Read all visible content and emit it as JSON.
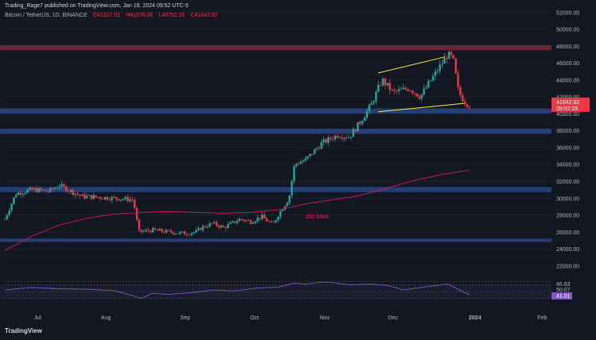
{
  "header": {
    "publisher_line": "Trading_Rage7 published on TradingView.com, Jan 19, 2024 09:52 UTC-5",
    "symbol": "Bitcoin / TetherUS, 1D, BINANCE",
    "ohlc": {
      "o": "O41327.51",
      "h": "H41576.00",
      "l": "L40752.26",
      "c": "C41042.92"
    }
  },
  "logo": "TradingView",
  "colors": {
    "bg": "#131722",
    "up": "#26a69a",
    "down": "#f23645",
    "zone_blue": "#2a4a8a",
    "zone_red": "#7a2a3a",
    "channel": "#ffeb3b",
    "dma": "#c2185b",
    "rsi": "#7e57c2",
    "price_badge": "#f23645"
  },
  "chart_data": {
    "type": "candlestick",
    "price_axis": {
      "ticks": [
        22000,
        24000,
        26000,
        28000,
        30000,
        32000,
        34000,
        36000,
        38000,
        40000,
        42000,
        44000,
        46000,
        48000,
        50000,
        52000
      ],
      "range": [
        21000,
        52500
      ]
    },
    "time_axis": {
      "ticks": [
        "Jul",
        "Aug",
        "Sep",
        "Oct",
        "Nov",
        "Dec",
        "2024",
        "Feb"
      ]
    },
    "last_price": "41042.92",
    "countdown": "09:07:28",
    "zones": [
      {
        "color": "red",
        "low": 47500,
        "high": 48100
      },
      {
        "color": "blue",
        "low": 40000,
        "high": 40600
      },
      {
        "color": "blue",
        "low": 37600,
        "high": 38200
      },
      {
        "color": "blue",
        "low": 30700,
        "high": 31300
      },
      {
        "color": "blue",
        "low": 24800,
        "high": 25200
      }
    ],
    "channel": {
      "upper": [
        [
          0.683,
          44800
        ],
        [
          0.805,
          46700
        ]
      ],
      "lower": [
        [
          0.683,
          40200
        ],
        [
          0.84,
          41200
        ]
      ]
    },
    "dma_label": "200 DMA",
    "anchors": [
      [
        0.0,
        27500
      ],
      [
        0.02,
        30500
      ],
      [
        0.05,
        31000
      ],
      [
        0.08,
        30800
      ],
      [
        0.1,
        31500
      ],
      [
        0.14,
        30200
      ],
      [
        0.2,
        30000
      ],
      [
        0.235,
        29800
      ],
      [
        0.245,
        26000
      ],
      [
        0.27,
        26200
      ],
      [
        0.3,
        26000
      ],
      [
        0.33,
        25800
      ],
      [
        0.35,
        26000
      ],
      [
        0.36,
        26500
      ],
      [
        0.38,
        27000
      ],
      [
        0.4,
        26500
      ],
      [
        0.43,
        27500
      ],
      [
        0.45,
        27200
      ],
      [
        0.47,
        27800
      ],
      [
        0.49,
        26800
      ],
      [
        0.5,
        28000
      ],
      [
        0.52,
        30000
      ],
      [
        0.53,
        34000
      ],
      [
        0.55,
        34500
      ],
      [
        0.58,
        36500
      ],
      [
        0.61,
        37500
      ],
      [
        0.63,
        37200
      ],
      [
        0.65,
        39000
      ],
      [
        0.67,
        41000
      ],
      [
        0.69,
        44000
      ],
      [
        0.71,
        42500
      ],
      [
        0.74,
        43000
      ],
      [
        0.76,
        42000
      ],
      [
        0.79,
        45000
      ],
      [
        0.81,
        47000
      ],
      [
        0.82,
        46500
      ],
      [
        0.83,
        42500
      ],
      [
        0.84,
        41500
      ],
      [
        0.85,
        41000
      ]
    ],
    "dma": [
      [
        0.0,
        23800
      ],
      [
        0.05,
        25500
      ],
      [
        0.1,
        26800
      ],
      [
        0.15,
        27600
      ],
      [
        0.2,
        28100
      ],
      [
        0.25,
        28300
      ],
      [
        0.3,
        28400
      ],
      [
        0.35,
        28300
      ],
      [
        0.4,
        28200
      ],
      [
        0.45,
        28300
      ],
      [
        0.5,
        28600
      ],
      [
        0.55,
        29300
      ],
      [
        0.6,
        29800
      ],
      [
        0.65,
        30300
      ],
      [
        0.7,
        31200
      ],
      [
        0.75,
        32100
      ],
      [
        0.8,
        32800
      ],
      [
        0.85,
        33300
      ]
    ],
    "rsi": {
      "values_labels": [
        "66.83",
        "50.07",
        "41.01"
      ],
      "levels": [
        80,
        70,
        50,
        30
      ],
      "anchors": [
        [
          0.0,
          55
        ],
        [
          0.05,
          62
        ],
        [
          0.1,
          58
        ],
        [
          0.15,
          57
        ],
        [
          0.2,
          53
        ],
        [
          0.23,
          40
        ],
        [
          0.25,
          30
        ],
        [
          0.27,
          45
        ],
        [
          0.3,
          42
        ],
        [
          0.35,
          48
        ],
        [
          0.38,
          55
        ],
        [
          0.42,
          52
        ],
        [
          0.46,
          60
        ],
        [
          0.5,
          63
        ],
        [
          0.53,
          75
        ],
        [
          0.55,
          72
        ],
        [
          0.58,
          78
        ],
        [
          0.6,
          76
        ],
        [
          0.63,
          70
        ],
        [
          0.67,
          72
        ],
        [
          0.7,
          68
        ],
        [
          0.73,
          55
        ],
        [
          0.76,
          62
        ],
        [
          0.79,
          68
        ],
        [
          0.81,
          72
        ],
        [
          0.82,
          64
        ],
        [
          0.84,
          48
        ],
        [
          0.85,
          41
        ]
      ]
    }
  }
}
